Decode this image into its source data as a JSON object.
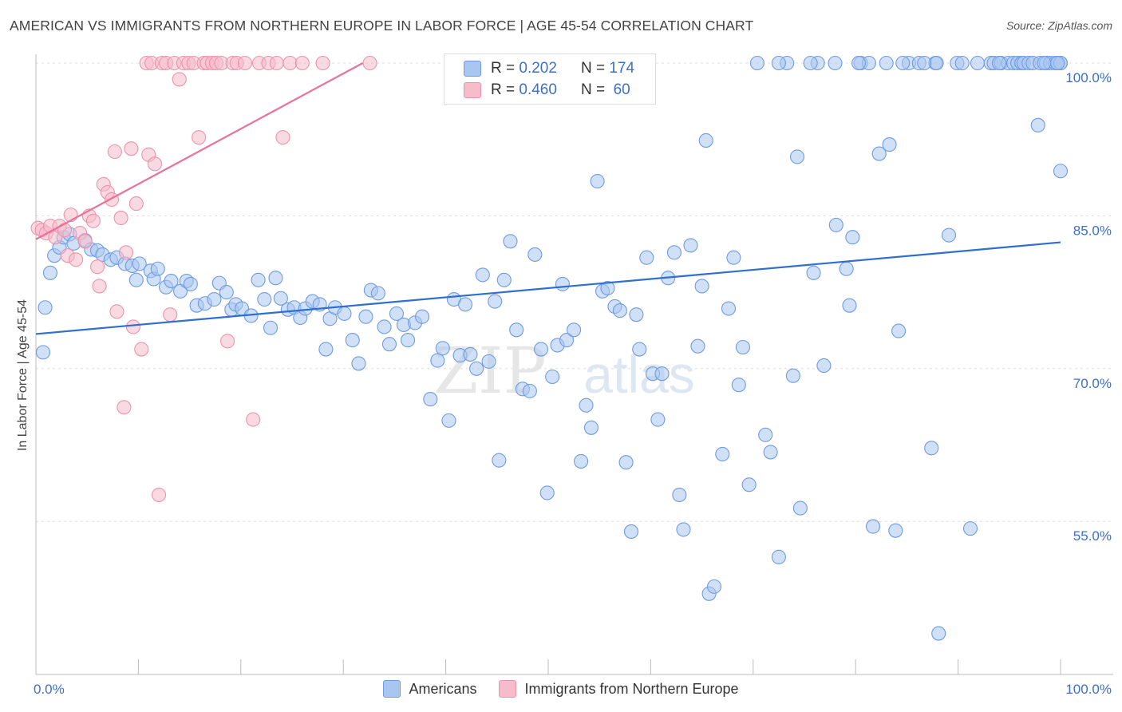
{
  "header": {
    "title": "AMERICAN VS IMMIGRANTS FROM NORTHERN EUROPE IN LABOR FORCE | AGE 45-54 CORRELATION CHART",
    "source": "Source: ZipAtlas.com"
  },
  "legend": {
    "rows": [
      {
        "r_label": "R =",
        "r_value": "0.202",
        "n_label": "N =",
        "n_value": "174"
      },
      {
        "r_label": "R =",
        "r_value": "0.460",
        "n_label": "N =",
        "n_value": "60"
      }
    ]
  },
  "watermark": {
    "zip": "ZIP",
    "atlas": "atlas"
  },
  "colors": {
    "americans_fill": "#a9c6f0",
    "americans_stroke": "#6f9be0",
    "americans_line": "#2e6fcf",
    "immigrants_fill": "#f6bccb",
    "immigrants_stroke": "#ec93ab",
    "immigrants_line": "#e8729b",
    "tick_label": "#3d6fc7",
    "grid": "#dddddd"
  },
  "chart_data": {
    "type": "scatter",
    "title": "AMERICAN VS IMMIGRANTS FROM NORTHERN EUROPE IN LABOR FORCE | AGE 45-54 CORRELATION CHART",
    "xlabel": "",
    "ylabel": "In Labor Force | Age 45-54",
    "xlim": [
      0,
      100
    ],
    "ylim": [
      40,
      101.5
    ],
    "x_tick_labels": [
      "0.0%",
      "100.0%"
    ],
    "y_ticks": [
      55,
      70,
      85,
      100
    ],
    "y_tick_labels": [
      "55.0%",
      "70.0%",
      "85.0%",
      "100.0%"
    ],
    "grid": true,
    "legend_position": "top-center and bottom",
    "series": [
      {
        "name": "Americans",
        "R": 0.202,
        "N": 174,
        "trend": {
          "x": [
            0,
            100
          ],
          "y": [
            73.4,
            82.4
          ]
        },
        "points": [
          [
            0.7,
            71.6
          ],
          [
            0.9,
            76.0
          ],
          [
            1.4,
            79.4
          ],
          [
            1.8,
            81.1
          ],
          [
            2.3,
            81.9
          ],
          [
            2.7,
            82.9
          ],
          [
            3.3,
            83.2
          ],
          [
            3.7,
            82.3
          ],
          [
            4.8,
            82.6
          ],
          [
            5.4,
            81.7
          ],
          [
            6.0,
            81.6
          ],
          [
            6.5,
            81.2
          ],
          [
            7.3,
            80.7
          ],
          [
            7.9,
            80.9
          ],
          [
            8.7,
            80.3
          ],
          [
            9.4,
            80.1
          ],
          [
            9.8,
            78.7
          ],
          [
            10.1,
            80.3
          ],
          [
            11.2,
            79.6
          ],
          [
            11.5,
            78.8
          ],
          [
            11.9,
            79.8
          ],
          [
            12.7,
            78.0
          ],
          [
            13.2,
            78.6
          ],
          [
            14.1,
            77.6
          ],
          [
            14.7,
            78.6
          ],
          [
            15.1,
            78.3
          ],
          [
            15.7,
            76.2
          ],
          [
            16.5,
            76.4
          ],
          [
            17.4,
            76.8
          ],
          [
            17.9,
            78.4
          ],
          [
            18.6,
            77.5
          ],
          [
            19.1,
            75.8
          ],
          [
            19.5,
            76.3
          ],
          [
            20.1,
            75.9
          ],
          [
            21.0,
            75.2
          ],
          [
            21.7,
            78.7
          ],
          [
            22.3,
            76.8
          ],
          [
            22.9,
            74.0
          ],
          [
            23.4,
            78.9
          ],
          [
            23.9,
            76.9
          ],
          [
            24.6,
            75.8
          ],
          [
            25.2,
            76.0
          ],
          [
            25.8,
            75.0
          ],
          [
            26.3,
            75.9
          ],
          [
            27.0,
            76.6
          ],
          [
            27.7,
            76.3
          ],
          [
            28.3,
            71.9
          ],
          [
            28.7,
            74.9
          ],
          [
            29.2,
            76.0
          ],
          [
            30.1,
            75.4
          ],
          [
            30.9,
            72.8
          ],
          [
            31.5,
            70.5
          ],
          [
            32.2,
            75.1
          ],
          [
            32.7,
            77.7
          ],
          [
            33.4,
            77.4
          ],
          [
            34.0,
            74.1
          ],
          [
            34.5,
            72.4
          ],
          [
            35.2,
            75.4
          ],
          [
            35.9,
            74.3
          ],
          [
            36.3,
            72.8
          ],
          [
            37.0,
            74.5
          ],
          [
            37.7,
            75.1
          ],
          [
            38.5,
            67.0
          ],
          [
            39.2,
            70.8
          ],
          [
            39.7,
            72.0
          ],
          [
            40.3,
            64.9
          ],
          [
            40.8,
            76.8
          ],
          [
            41.4,
            71.3
          ],
          [
            41.9,
            76.3
          ],
          [
            42.4,
            71.4
          ],
          [
            43.0,
            70.0
          ],
          [
            43.6,
            79.2
          ],
          [
            44.2,
            70.7
          ],
          [
            44.8,
            76.6
          ],
          [
            45.2,
            61.0
          ],
          [
            45.7,
            78.7
          ],
          [
            46.3,
            82.5
          ],
          [
            46.9,
            73.8
          ],
          [
            47.5,
            68.0
          ],
          [
            48.2,
            67.8
          ],
          [
            48.7,
            81.2
          ],
          [
            49.3,
            71.9
          ],
          [
            49.9,
            57.8
          ],
          [
            50.4,
            69.2
          ],
          [
            50.9,
            72.3
          ],
          [
            51.4,
            78.3
          ],
          [
            51.8,
            72.8
          ],
          [
            52.5,
            73.8
          ],
          [
            53.2,
            60.9
          ],
          [
            53.7,
            66.4
          ],
          [
            54.2,
            64.2
          ],
          [
            54.8,
            88.4
          ],
          [
            55.3,
            77.6
          ],
          [
            55.8,
            77.9
          ],
          [
            56.5,
            76.1
          ],
          [
            57.0,
            75.7
          ],
          [
            57.6,
            60.8
          ],
          [
            58.1,
            54.0
          ],
          [
            58.6,
            75.3
          ],
          [
            58.9,
            71.9
          ],
          [
            59.6,
            80.9
          ],
          [
            60.2,
            69.5
          ],
          [
            60.7,
            65.0
          ],
          [
            61.1,
            69.5
          ],
          [
            61.7,
            78.9
          ],
          [
            62.3,
            81.4
          ],
          [
            62.8,
            57.6
          ],
          [
            63.2,
            54.2
          ],
          [
            63.9,
            82.1
          ],
          [
            64.6,
            72.2
          ],
          [
            65.0,
            78.1
          ],
          [
            65.4,
            92.4
          ],
          [
            65.7,
            47.9
          ],
          [
            66.2,
            48.6
          ],
          [
            67.0,
            61.6
          ],
          [
            67.6,
            75.9
          ],
          [
            68.1,
            80.9
          ],
          [
            68.6,
            68.4
          ],
          [
            69.0,
            72.1
          ],
          [
            69.6,
            58.6
          ],
          [
            70.4,
            100.0
          ],
          [
            71.2,
            63.5
          ],
          [
            71.7,
            61.8
          ],
          [
            72.5,
            51.5
          ],
          [
            73.3,
            100.0
          ],
          [
            73.9,
            69.3
          ],
          [
            74.3,
            90.8
          ],
          [
            74.6,
            56.3
          ],
          [
            75.9,
            79.4
          ],
          [
            76.3,
            100.0
          ],
          [
            76.9,
            70.3
          ],
          [
            78.1,
            84.1
          ],
          [
            79.1,
            79.8
          ],
          [
            79.4,
            76.2
          ],
          [
            79.7,
            82.9
          ],
          [
            80.5,
            100.0
          ],
          [
            81.3,
            100.0
          ],
          [
            81.7,
            54.5
          ],
          [
            82.3,
            91.1
          ],
          [
            83.0,
            100.0
          ],
          [
            83.3,
            92.0
          ],
          [
            83.9,
            54.1
          ],
          [
            84.2,
            73.7
          ],
          [
            85.2,
            100.0
          ],
          [
            86.2,
            100.0
          ],
          [
            87.4,
            62.2
          ],
          [
            87.8,
            100.0
          ],
          [
            88.1,
            44.0
          ],
          [
            89.1,
            83.1
          ],
          [
            89.9,
            100.0
          ],
          [
            90.4,
            100.0
          ],
          [
            91.2,
            54.3
          ],
          [
            93.2,
            100.0
          ],
          [
            93.5,
            100.0
          ],
          [
            94.2,
            100.0
          ],
          [
            94.9,
            100.0
          ],
          [
            95.4,
            100.0
          ],
          [
            95.8,
            100.0
          ],
          [
            96.2,
            100.0
          ],
          [
            96.4,
            100.0
          ],
          [
            96.9,
            100.0
          ],
          [
            97.3,
            100.0
          ],
          [
            98.0,
            100.0
          ],
          [
            98.6,
            100.0
          ],
          [
            99.0,
            100.0
          ],
          [
            99.5,
            100.0
          ],
          [
            100.0,
            100.0
          ],
          [
            97.8,
            93.9
          ],
          [
            100.0,
            89.4
          ],
          [
            80.3,
            100.0
          ],
          [
            87.9,
            100.0
          ],
          [
            86.7,
            100.0
          ],
          [
            84.6,
            100.0
          ],
          [
            78.0,
            100.0
          ],
          [
            75.6,
            100.0
          ],
          [
            72.5,
            100.0
          ],
          [
            98.4,
            100.0
          ],
          [
            100.0,
            100.0
          ],
          [
            99.7,
            100.0
          ],
          [
            91.9,
            100.0
          ],
          [
            94.0,
            100.0
          ]
        ]
      },
      {
        "name": "Immigrants from Northern Europe",
        "R": 0.46,
        "N": 60,
        "trend": {
          "x": [
            0,
            31.9
          ],
          "y": [
            82.7,
            100.0
          ]
        },
        "points": [
          [
            0.2,
            83.8
          ],
          [
            0.6,
            83.6
          ],
          [
            1.0,
            83.3
          ],
          [
            1.4,
            84.0
          ],
          [
            1.9,
            82.9
          ],
          [
            2.3,
            84.0
          ],
          [
            2.8,
            83.6
          ],
          [
            3.1,
            81.1
          ],
          [
            3.4,
            85.1
          ],
          [
            3.9,
            80.7
          ],
          [
            4.3,
            83.3
          ],
          [
            4.8,
            82.5
          ],
          [
            5.2,
            85.0
          ],
          [
            5.6,
            84.5
          ],
          [
            6.0,
            80.0
          ],
          [
            6.2,
            78.1
          ],
          [
            6.6,
            88.1
          ],
          [
            7.0,
            87.3
          ],
          [
            7.4,
            86.6
          ],
          [
            7.7,
            91.3
          ],
          [
            7.9,
            75.6
          ],
          [
            8.3,
            84.8
          ],
          [
            8.6,
            66.2
          ],
          [
            8.8,
            81.4
          ],
          [
            9.3,
            91.6
          ],
          [
            9.5,
            74.1
          ],
          [
            9.8,
            86.2
          ],
          [
            10.3,
            71.9
          ],
          [
            10.8,
            100.0
          ],
          [
            11.0,
            91.0
          ],
          [
            11.3,
            100.0
          ],
          [
            11.6,
            90.1
          ],
          [
            12.0,
            57.6
          ],
          [
            12.3,
            100.0
          ],
          [
            12.7,
            100.0
          ],
          [
            13.1,
            75.3
          ],
          [
            13.5,
            100.0
          ],
          [
            14.0,
            98.4
          ],
          [
            14.4,
            100.0
          ],
          [
            14.9,
            100.0
          ],
          [
            15.4,
            100.0
          ],
          [
            15.9,
            92.7
          ],
          [
            16.4,
            100.0
          ],
          [
            16.7,
            100.0
          ],
          [
            17.2,
            100.0
          ],
          [
            17.6,
            100.0
          ],
          [
            18.1,
            100.0
          ],
          [
            18.7,
            72.7
          ],
          [
            19.2,
            100.0
          ],
          [
            19.6,
            100.0
          ],
          [
            20.4,
            100.0
          ],
          [
            21.2,
            65.0
          ],
          [
            21.8,
            100.0
          ],
          [
            22.7,
            100.0
          ],
          [
            23.5,
            100.0
          ],
          [
            24.1,
            92.7
          ],
          [
            24.8,
            100.0
          ],
          [
            26.0,
            100.0
          ],
          [
            28.0,
            100.0
          ],
          [
            32.6,
            100.0
          ]
        ]
      }
    ]
  },
  "bottom_legend": {
    "americans": "Americans",
    "immigrants": "Immigrants from Northern Europe"
  }
}
